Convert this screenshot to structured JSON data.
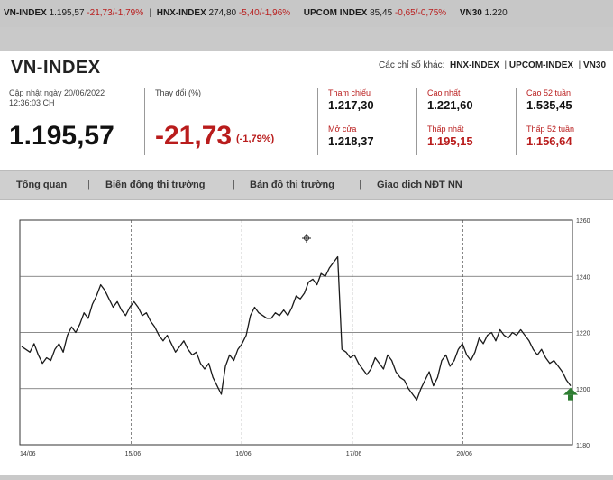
{
  "ticker": [
    {
      "name": "VN-INDEX",
      "value": "1.195,57",
      "change": "-21,73/-1,79%"
    },
    {
      "name": "HNX-INDEX",
      "value": "274,80",
      "change": "-5,40/-1,96%"
    },
    {
      "name": "UPCOM INDEX",
      "value": "85,45",
      "change": "-0,65/-0,75%"
    },
    {
      "name": "VN30",
      "value": "1.220",
      "change": ""
    }
  ],
  "header": {
    "title": "VN-INDEX",
    "other_label": "Các chỉ số khác:",
    "other_links": [
      "HNX-INDEX",
      "UPCOM-INDEX",
      "VN30"
    ]
  },
  "summary": {
    "updated_line1": "Cập nhật ngày 20/06/2022",
    "updated_line2": "12:36:03 CH",
    "index_value": "1.195,57",
    "change_label": "Thay đổi (%)",
    "change_value": "-21,73",
    "change_pct": "(-1,79%)"
  },
  "stats": {
    "ref_label": "Tham chiếu",
    "ref_value": "1.217,30",
    "open_label": "Mở cửa",
    "open_value": "1.218,37",
    "high_label": "Cao nhất",
    "high_value": "1.221,60",
    "low_label": "Thấp nhất",
    "low_value": "1.195,15",
    "high52_label": "Cao 52 tuần",
    "high52_value": "1.535,45",
    "low52_label": "Thấp 52 tuần",
    "low52_value": "1.156,64"
  },
  "tabs": [
    "Tổng quan",
    "Biến động thị trường",
    "Bản đồ thị trường",
    "Giao dịch NĐT NN"
  ],
  "colors": {
    "down": "#b91c1c",
    "up_arrow": "#2e7d32",
    "line": "#1a1a1a"
  },
  "chart_data": {
    "type": "line",
    "x_ticks": [
      "14/06",
      "15/06",
      "16/06",
      "17/06",
      "20/06"
    ],
    "y_ticks": [
      "1180",
      "1200",
      "1220",
      "1240",
      "1260"
    ],
    "ylim": [
      1180,
      1260
    ],
    "series": [
      {
        "values": [
          1215,
          1214,
          1213,
          1216,
          1212,
          1209,
          1211,
          1210,
          1214,
          1216,
          1213,
          1219,
          1222,
          1220,
          1223,
          1227,
          1225,
          1230,
          1233,
          1237,
          1235,
          1232,
          1229,
          1231,
          1228,
          1226,
          1229,
          1231,
          1229,
          1226,
          1227,
          1224,
          1222,
          1219,
          1217,
          1219,
          1216,
          1213,
          1215,
          1217,
          1214,
          1212,
          1213,
          1209,
          1207,
          1209,
          1204,
          1201,
          1198,
          1208,
          1212,
          1210,
          1214,
          1216,
          1219,
          1226,
          1229,
          1227,
          1226,
          1225,
          1225,
          1227,
          1226,
          1228,
          1226,
          1229,
          1233,
          1232,
          1234,
          1238,
          1239,
          1237,
          1241,
          1240,
          1243,
          1245,
          1247,
          1214,
          1213,
          1211,
          1212,
          1209,
          1207,
          1205,
          1207,
          1211,
          1209,
          1207,
          1212,
          1210,
          1206,
          1204,
          1203,
          1200,
          1198,
          1196,
          1200,
          1203,
          1206,
          1201,
          1204,
          1210,
          1212,
          1208,
          1210,
          1214,
          1216,
          1212,
          1210,
          1213,
          1218,
          1216,
          1219,
          1220,
          1217,
          1221,
          1219,
          1218,
          1220,
          1219,
          1221,
          1219,
          1217,
          1214,
          1212,
          1214,
          1211,
          1209,
          1210,
          1208,
          1206,
          1203,
          1201
        ]
      }
    ]
  }
}
